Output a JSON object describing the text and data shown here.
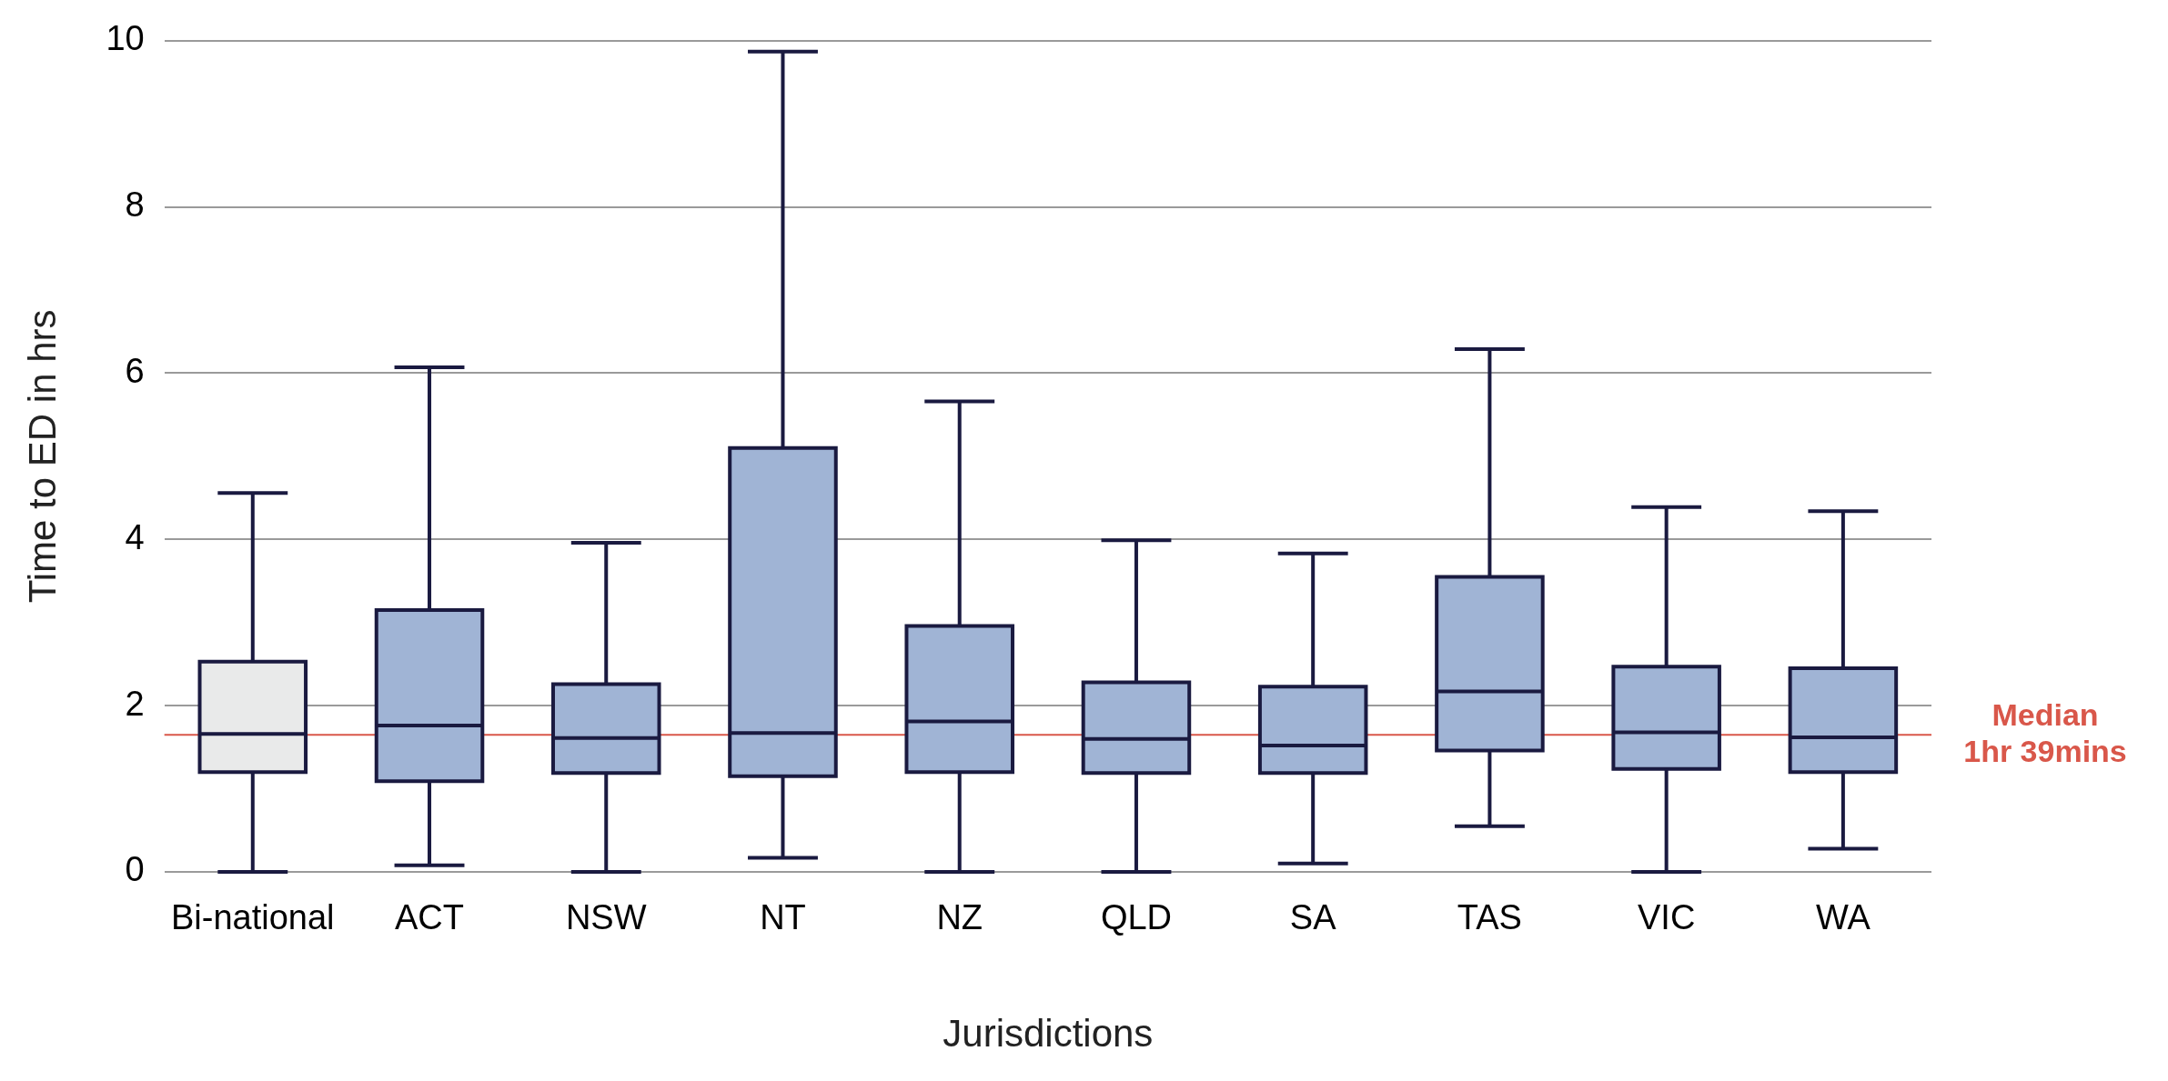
{
  "chart_data": {
    "type": "box",
    "xlabel": "Jurisdictions",
    "ylabel": "Time to ED in hrs",
    "categories": [
      "Bi-national",
      "ACT",
      "NSW",
      "NT",
      "NZ",
      "QLD",
      "SA",
      "TAS",
      "VIC",
      "WA"
    ],
    "colors": [
      "#e9eaea",
      "#a0b4d5",
      "#a0b4d5",
      "#a0b4d5",
      "#a0b4d5",
      "#a0b4d5",
      "#a0b4d5",
      "#a0b4d5",
      "#a0b4d5",
      "#a0b4d5"
    ],
    "boxes": [
      {
        "low": 0,
        "q1": 1.2,
        "median": 1.66,
        "q3": 2.53,
        "high": 4.56
      },
      {
        "low": 0.08,
        "q1": 1.09,
        "median": 1.76,
        "q3": 3.15,
        "high": 6.07
      },
      {
        "low": 0,
        "q1": 1.19,
        "median": 1.61,
        "q3": 2.26,
        "high": 3.96
      },
      {
        "low": 0.17,
        "q1": 1.15,
        "median": 1.67,
        "q3": 5.1,
        "high": 9.87
      },
      {
        "low": 0,
        "q1": 1.2,
        "median": 1.81,
        "q3": 2.96,
        "high": 5.66
      },
      {
        "low": 0,
        "q1": 1.19,
        "median": 1.6,
        "q3": 2.28,
        "high": 3.99
      },
      {
        "low": 0.1,
        "q1": 1.19,
        "median": 1.52,
        "q3": 2.23,
        "high": 3.83
      },
      {
        "low": 0.55,
        "q1": 1.46,
        "median": 2.17,
        "q3": 3.55,
        "high": 6.29
      },
      {
        "low": 0,
        "q1": 1.24,
        "median": 1.68,
        "q3": 2.47,
        "high": 4.39
      },
      {
        "low": 0.28,
        "q1": 1.2,
        "median": 1.62,
        "q3": 2.45,
        "high": 4.34
      }
    ],
    "ylim": [
      0,
      10
    ],
    "yticks": [
      0,
      2,
      4,
      6,
      8,
      10
    ],
    "grid": "y",
    "legend": false,
    "ref_lines": [
      {
        "axis": "y",
        "value": 1.65,
        "label": "Median 1hr 39mins",
        "color": "#d9574a"
      }
    ]
  }
}
